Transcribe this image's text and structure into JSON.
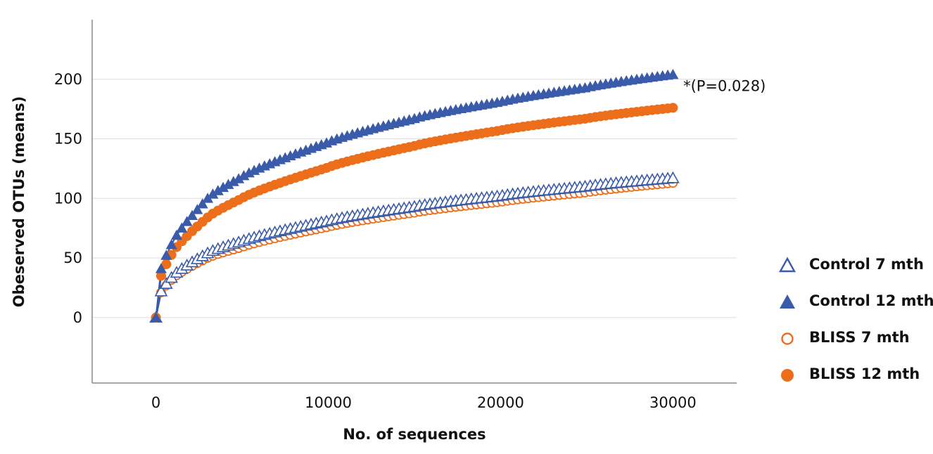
{
  "chart_data": {
    "type": "scatter",
    "title": "",
    "xlabel": "No. of sequences",
    "ylabel": "Obeserved OTUs (means)",
    "xlim": [
      -3700,
      33700
    ],
    "ylim": [
      -55,
      250
    ],
    "x_ticks": [
      0,
      10000,
      20000,
      30000
    ],
    "y_ticks": [
      0,
      50,
      100,
      150,
      200
    ],
    "x_tick_labels": [
      "0",
      "10000",
      "20000",
      "30000"
    ],
    "y_tick_labels": [
      "0",
      "50",
      "100",
      "150",
      "200"
    ],
    "grid": "horizontal",
    "legend_position": "right",
    "annotation": {
      "text": "*(P=0.028)",
      "x": 30600,
      "y": 190
    },
    "series": [
      {
        "name": "Control 7 mth",
        "marker": "triangle-open",
        "color": "#3a5ba9",
        "x": [
          0,
          300,
          1000,
          3000,
          5000,
          10000,
          15000,
          20000,
          25000,
          30000
        ],
        "values": [
          0,
          22,
          35,
          54,
          64,
          81,
          93,
          102,
          110,
          117
        ]
      },
      {
        "name": "Control 12 mth",
        "marker": "triangle-filled",
        "color": "#3a5ba9",
        "x": [
          0,
          300,
          1000,
          3000,
          5000,
          10000,
          15000,
          20000,
          25000,
          30000
        ],
        "values": [
          0,
          41,
          64,
          100,
          118,
          147,
          167,
          181,
          193,
          204
        ]
      },
      {
        "name": "BLISS 7 mth",
        "marker": "circle-open",
        "color": "#ec6e1b",
        "x": [
          0,
          300,
          1000,
          3000,
          5000,
          10000,
          15000,
          20000,
          25000,
          30000
        ],
        "values": [
          0,
          21,
          33,
          50,
          59,
          76,
          88,
          97,
          105,
          113
        ]
      },
      {
        "name": "BLISS 12 mth",
        "marker": "circle-filled",
        "color": "#ec6e1b",
        "x": [
          0,
          300,
          1000,
          3000,
          5000,
          10000,
          15000,
          20000,
          25000,
          30000
        ],
        "values": [
          0,
          35,
          55,
          84,
          100,
          126,
          144,
          157,
          167,
          176
        ]
      }
    ],
    "curve_color": "#3a5ba9"
  }
}
